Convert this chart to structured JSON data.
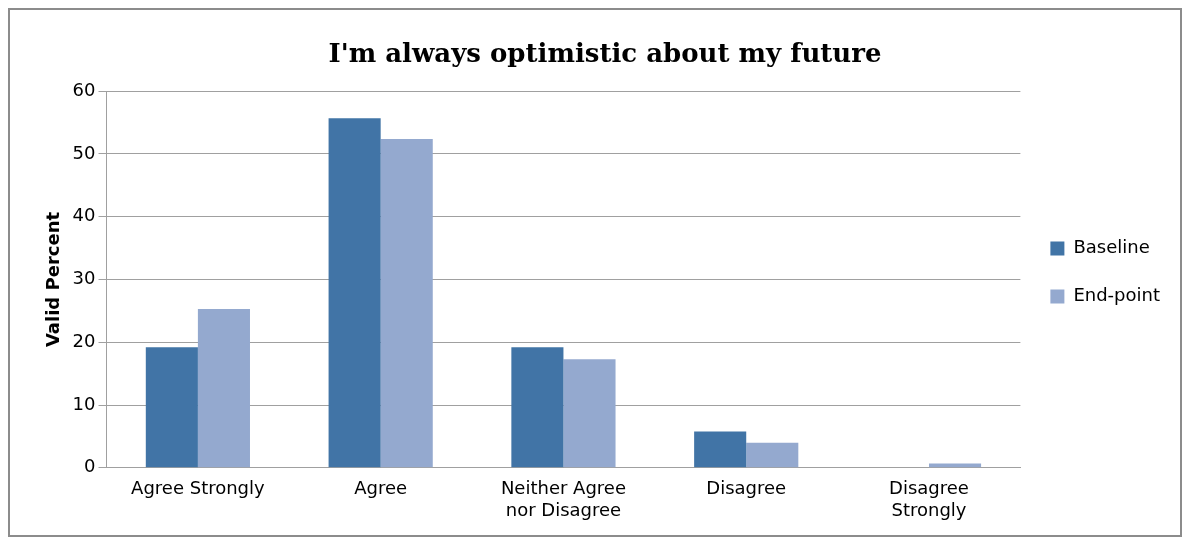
{
  "chart_data": {
    "type": "bar",
    "title": "I'm always optimistic about my future",
    "ylabel": "Valid Percent",
    "categories": [
      "Agree Strongly",
      "Agree",
      "Neither Agree nor Disagree",
      "Disagree",
      "Disagree Strongly"
    ],
    "series": [
      {
        "name": "Baseline",
        "color": "#4174a6",
        "values": [
          19.2,
          55.7,
          19.2,
          5.8,
          0
        ]
      },
      {
        "name": "End-point",
        "color": "#94a9cf",
        "values": [
          25.3,
          52.4,
          17.3,
          4.0,
          0.7
        ]
      }
    ],
    "ylim": [
      0,
      60
    ],
    "yticks": [
      0,
      10,
      20,
      30,
      40,
      50,
      60
    ],
    "grid": "y",
    "legend": "right"
  }
}
